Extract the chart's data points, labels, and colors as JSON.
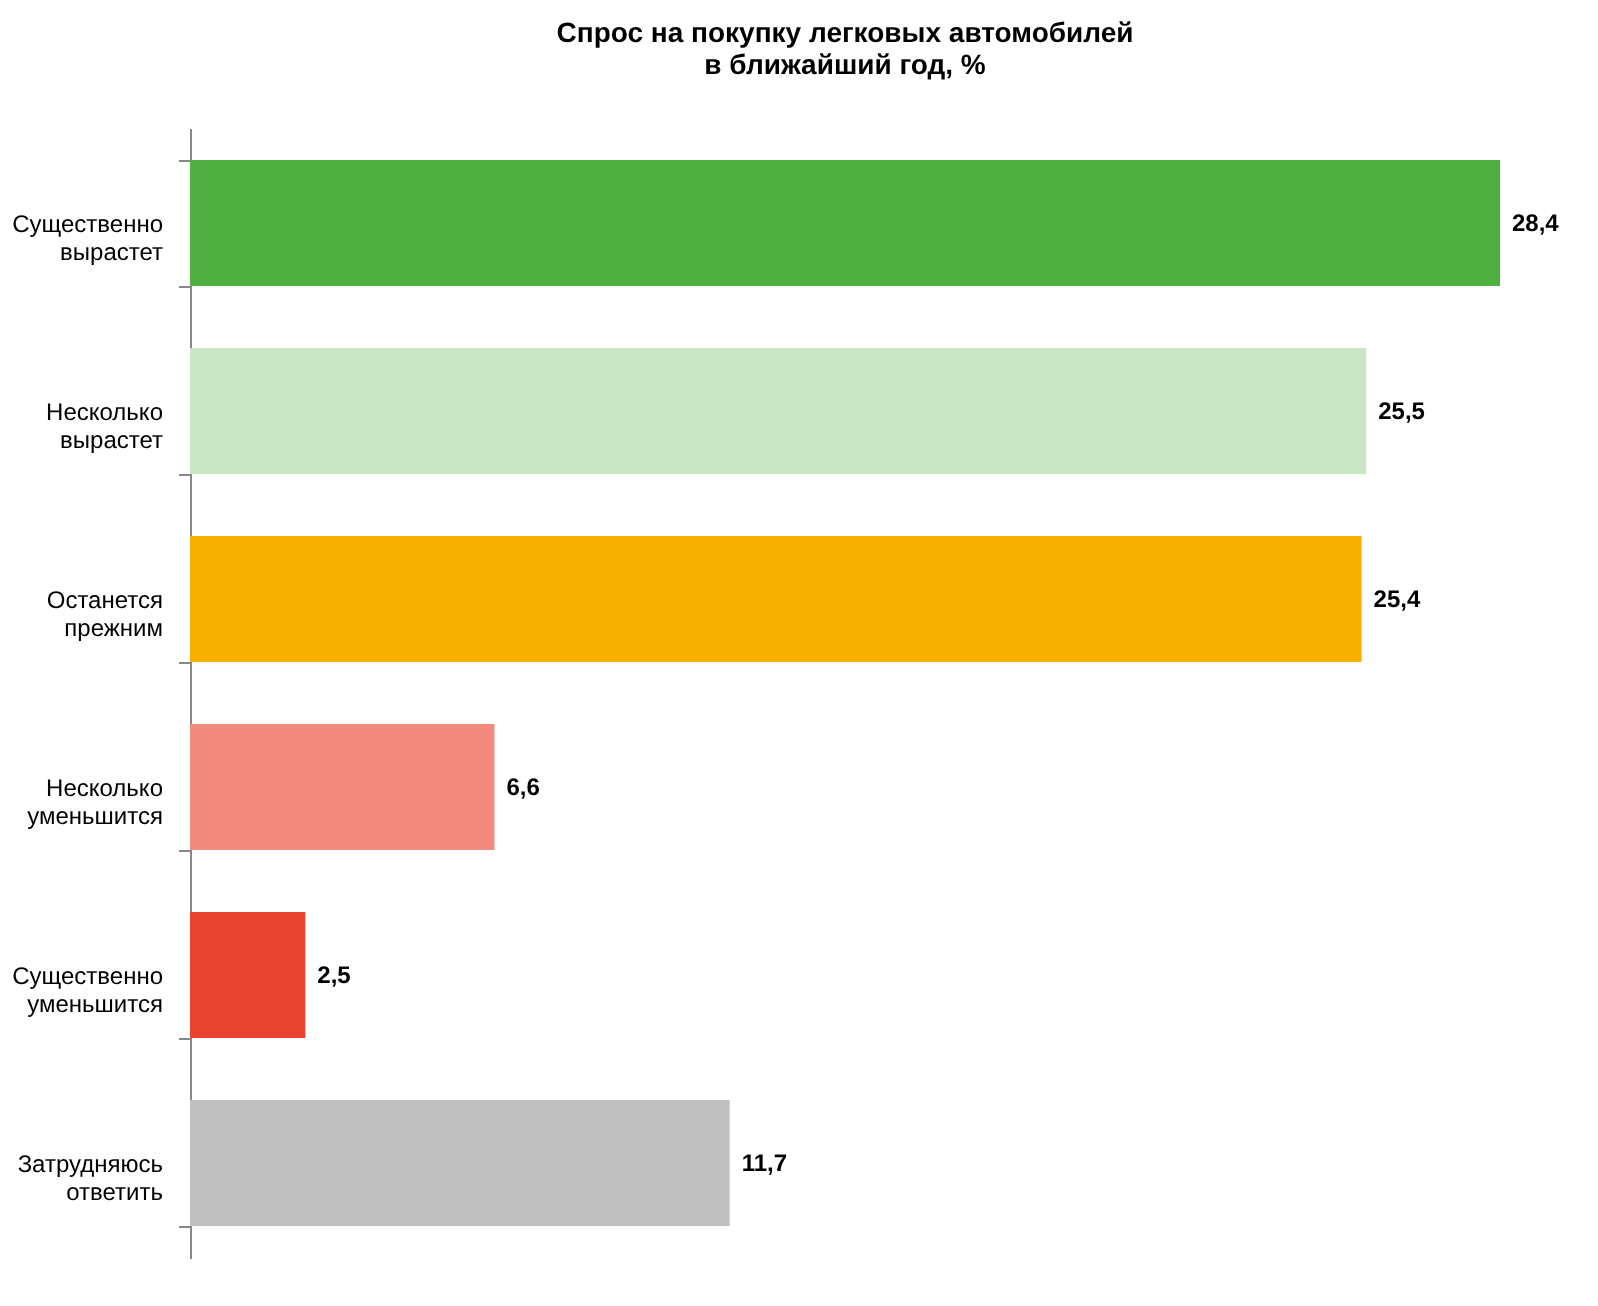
{
  "chart_data": {
    "type": "bar",
    "orientation": "horizontal",
    "title": "Спрос на покупку легковых автомобилей\nв ближайший год, %",
    "categories": [
      "Существенно вырастет",
      "Несколько вырастет",
      "Останется прежним",
      "Несколько уменьшится",
      "Существенно уменьшится",
      "Затрудняюсь ответить"
    ],
    "values": [
      28.4,
      25.5,
      25.4,
      6.6,
      2.5,
      11.7
    ],
    "colors": [
      "#4eb03e",
      "#c9e7c4",
      "#f8b000",
      "#f28b7e",
      "#e84230",
      "#bfbfbf"
    ],
    "value_labels": [
      "28,4",
      "25,5",
      "25,4",
      "6,6",
      "2,5",
      "11,7"
    ]
  }
}
